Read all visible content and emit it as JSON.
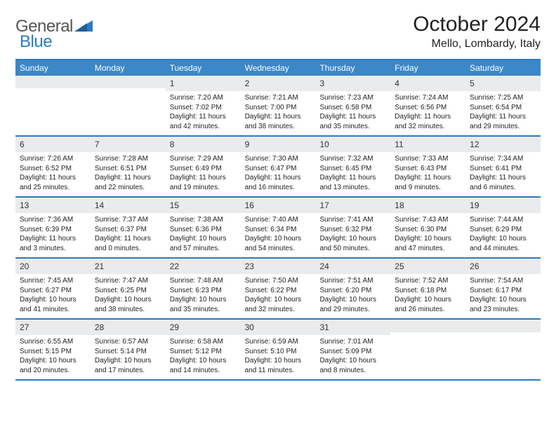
{
  "logo": {
    "word1": "General",
    "word2": "Blue"
  },
  "title": "October 2024",
  "location": "Mello, Lombardy, Italy",
  "colors": {
    "accent": "#2b7ac2",
    "header_bg": "#3b87c8",
    "daynum_bg": "#e9ebed",
    "text": "#222222",
    "logo_gray": "#555555"
  },
  "dow": [
    "Sunday",
    "Monday",
    "Tuesday",
    "Wednesday",
    "Thursday",
    "Friday",
    "Saturday"
  ],
  "weeks": [
    [
      {
        "n": "",
        "sr": "",
        "ss": "",
        "dl": ""
      },
      {
        "n": "",
        "sr": "",
        "ss": "",
        "dl": ""
      },
      {
        "n": "1",
        "sr": "Sunrise: 7:20 AM",
        "ss": "Sunset: 7:02 PM",
        "dl": "Daylight: 11 hours and 42 minutes."
      },
      {
        "n": "2",
        "sr": "Sunrise: 7:21 AM",
        "ss": "Sunset: 7:00 PM",
        "dl": "Daylight: 11 hours and 38 minutes."
      },
      {
        "n": "3",
        "sr": "Sunrise: 7:23 AM",
        "ss": "Sunset: 6:58 PM",
        "dl": "Daylight: 11 hours and 35 minutes."
      },
      {
        "n": "4",
        "sr": "Sunrise: 7:24 AM",
        "ss": "Sunset: 6:56 PM",
        "dl": "Daylight: 11 hours and 32 minutes."
      },
      {
        "n": "5",
        "sr": "Sunrise: 7:25 AM",
        "ss": "Sunset: 6:54 PM",
        "dl": "Daylight: 11 hours and 29 minutes."
      }
    ],
    [
      {
        "n": "6",
        "sr": "Sunrise: 7:26 AM",
        "ss": "Sunset: 6:52 PM",
        "dl": "Daylight: 11 hours and 25 minutes."
      },
      {
        "n": "7",
        "sr": "Sunrise: 7:28 AM",
        "ss": "Sunset: 6:51 PM",
        "dl": "Daylight: 11 hours and 22 minutes."
      },
      {
        "n": "8",
        "sr": "Sunrise: 7:29 AM",
        "ss": "Sunset: 6:49 PM",
        "dl": "Daylight: 11 hours and 19 minutes."
      },
      {
        "n": "9",
        "sr": "Sunrise: 7:30 AM",
        "ss": "Sunset: 6:47 PM",
        "dl": "Daylight: 11 hours and 16 minutes."
      },
      {
        "n": "10",
        "sr": "Sunrise: 7:32 AM",
        "ss": "Sunset: 6:45 PM",
        "dl": "Daylight: 11 hours and 13 minutes."
      },
      {
        "n": "11",
        "sr": "Sunrise: 7:33 AM",
        "ss": "Sunset: 6:43 PM",
        "dl": "Daylight: 11 hours and 9 minutes."
      },
      {
        "n": "12",
        "sr": "Sunrise: 7:34 AM",
        "ss": "Sunset: 6:41 PM",
        "dl": "Daylight: 11 hours and 6 minutes."
      }
    ],
    [
      {
        "n": "13",
        "sr": "Sunrise: 7:36 AM",
        "ss": "Sunset: 6:39 PM",
        "dl": "Daylight: 11 hours and 3 minutes."
      },
      {
        "n": "14",
        "sr": "Sunrise: 7:37 AM",
        "ss": "Sunset: 6:37 PM",
        "dl": "Daylight: 11 hours and 0 minutes."
      },
      {
        "n": "15",
        "sr": "Sunrise: 7:38 AM",
        "ss": "Sunset: 6:36 PM",
        "dl": "Daylight: 10 hours and 57 minutes."
      },
      {
        "n": "16",
        "sr": "Sunrise: 7:40 AM",
        "ss": "Sunset: 6:34 PM",
        "dl": "Daylight: 10 hours and 54 minutes."
      },
      {
        "n": "17",
        "sr": "Sunrise: 7:41 AM",
        "ss": "Sunset: 6:32 PM",
        "dl": "Daylight: 10 hours and 50 minutes."
      },
      {
        "n": "18",
        "sr": "Sunrise: 7:43 AM",
        "ss": "Sunset: 6:30 PM",
        "dl": "Daylight: 10 hours and 47 minutes."
      },
      {
        "n": "19",
        "sr": "Sunrise: 7:44 AM",
        "ss": "Sunset: 6:29 PM",
        "dl": "Daylight: 10 hours and 44 minutes."
      }
    ],
    [
      {
        "n": "20",
        "sr": "Sunrise: 7:45 AM",
        "ss": "Sunset: 6:27 PM",
        "dl": "Daylight: 10 hours and 41 minutes."
      },
      {
        "n": "21",
        "sr": "Sunrise: 7:47 AM",
        "ss": "Sunset: 6:25 PM",
        "dl": "Daylight: 10 hours and 38 minutes."
      },
      {
        "n": "22",
        "sr": "Sunrise: 7:48 AM",
        "ss": "Sunset: 6:23 PM",
        "dl": "Daylight: 10 hours and 35 minutes."
      },
      {
        "n": "23",
        "sr": "Sunrise: 7:50 AM",
        "ss": "Sunset: 6:22 PM",
        "dl": "Daylight: 10 hours and 32 minutes."
      },
      {
        "n": "24",
        "sr": "Sunrise: 7:51 AM",
        "ss": "Sunset: 6:20 PM",
        "dl": "Daylight: 10 hours and 29 minutes."
      },
      {
        "n": "25",
        "sr": "Sunrise: 7:52 AM",
        "ss": "Sunset: 6:18 PM",
        "dl": "Daylight: 10 hours and 26 minutes."
      },
      {
        "n": "26",
        "sr": "Sunrise: 7:54 AM",
        "ss": "Sunset: 6:17 PM",
        "dl": "Daylight: 10 hours and 23 minutes."
      }
    ],
    [
      {
        "n": "27",
        "sr": "Sunrise: 6:55 AM",
        "ss": "Sunset: 5:15 PM",
        "dl": "Daylight: 10 hours and 20 minutes."
      },
      {
        "n": "28",
        "sr": "Sunrise: 6:57 AM",
        "ss": "Sunset: 5:14 PM",
        "dl": "Daylight: 10 hours and 17 minutes."
      },
      {
        "n": "29",
        "sr": "Sunrise: 6:58 AM",
        "ss": "Sunset: 5:12 PM",
        "dl": "Daylight: 10 hours and 14 minutes."
      },
      {
        "n": "30",
        "sr": "Sunrise: 6:59 AM",
        "ss": "Sunset: 5:10 PM",
        "dl": "Daylight: 10 hours and 11 minutes."
      },
      {
        "n": "31",
        "sr": "Sunrise: 7:01 AM",
        "ss": "Sunset: 5:09 PM",
        "dl": "Daylight: 10 hours and 8 minutes."
      },
      {
        "n": "",
        "sr": "",
        "ss": "",
        "dl": ""
      },
      {
        "n": "",
        "sr": "",
        "ss": "",
        "dl": ""
      }
    ]
  ]
}
